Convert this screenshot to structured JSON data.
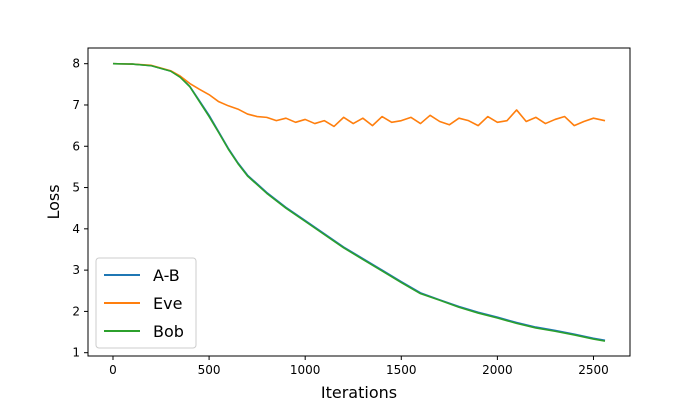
{
  "chart_data": {
    "type": "line",
    "title": "",
    "xlabel": "Iterations",
    "ylabel": "Loss",
    "xlim": [
      -130,
      2690
    ],
    "ylim": [
      0.92,
      8.38
    ],
    "xticks": [
      0,
      500,
      1000,
      1500,
      2000,
      2500
    ],
    "xtick_labels": [
      "0",
      "500",
      "1000",
      "1500",
      "2000",
      "2500"
    ],
    "yticks": [
      1,
      2,
      3,
      4,
      5,
      6,
      7,
      8
    ],
    "ytick_labels": [
      "1",
      "2",
      "3",
      "4",
      "5",
      "6",
      "7",
      "8"
    ],
    "grid": false,
    "legend_position": "lower-left",
    "series": [
      {
        "name": "A-B",
        "color": "#1f77b4",
        "x": [
          0,
          100,
          200,
          300,
          350,
          400,
          450,
          500,
          550,
          600,
          650,
          700,
          800,
          900,
          1000,
          1100,
          1200,
          1300,
          1400,
          1500,
          1600,
          1700,
          1800,
          1900,
          2000,
          2100,
          2200,
          2300,
          2400,
          2500,
          2560
        ],
        "y": [
          8.0,
          7.99,
          7.95,
          7.82,
          7.68,
          7.45,
          7.1,
          6.75,
          6.35,
          5.95,
          5.6,
          5.3,
          4.88,
          4.52,
          4.2,
          3.88,
          3.56,
          3.28,
          3.0,
          2.72,
          2.45,
          2.28,
          2.12,
          1.98,
          1.86,
          1.73,
          1.62,
          1.54,
          1.45,
          1.35,
          1.3
        ]
      },
      {
        "name": "Eve",
        "color": "#ff7f0e",
        "x": [
          0,
          100,
          200,
          300,
          350,
          400,
          450,
          500,
          550,
          600,
          650,
          700,
          750,
          800,
          850,
          900,
          950,
          1000,
          1050,
          1100,
          1150,
          1200,
          1250,
          1300,
          1350,
          1400,
          1450,
          1500,
          1550,
          1600,
          1650,
          1700,
          1750,
          1800,
          1850,
          1900,
          1950,
          2000,
          2050,
          2100,
          2150,
          2200,
          2250,
          2300,
          2350,
          2400,
          2450,
          2500,
          2560
        ],
        "y": [
          8.0,
          7.99,
          7.96,
          7.83,
          7.7,
          7.52,
          7.38,
          7.25,
          7.08,
          6.98,
          6.9,
          6.78,
          6.72,
          6.7,
          6.62,
          6.68,
          6.58,
          6.65,
          6.55,
          6.62,
          6.48,
          6.7,
          6.55,
          6.68,
          6.5,
          6.72,
          6.58,
          6.62,
          6.7,
          6.55,
          6.75,
          6.6,
          6.52,
          6.68,
          6.62,
          6.5,
          6.72,
          6.58,
          6.62,
          6.88,
          6.6,
          6.7,
          6.55,
          6.65,
          6.72,
          6.5,
          6.6,
          6.68,
          6.62
        ]
      },
      {
        "name": "Bob",
        "color": "#2ca02c",
        "x": [
          0,
          100,
          200,
          300,
          350,
          400,
          450,
          500,
          550,
          600,
          650,
          700,
          800,
          900,
          1000,
          1100,
          1200,
          1300,
          1400,
          1500,
          1600,
          1700,
          1800,
          1900,
          2000,
          2100,
          2200,
          2300,
          2400,
          2500,
          2560
        ],
        "y": [
          8.0,
          7.99,
          7.95,
          7.82,
          7.67,
          7.44,
          7.08,
          6.72,
          6.33,
          5.93,
          5.58,
          5.28,
          4.86,
          4.5,
          4.18,
          3.86,
          3.54,
          3.26,
          2.98,
          2.7,
          2.43,
          2.27,
          2.1,
          1.96,
          1.84,
          1.71,
          1.6,
          1.52,
          1.43,
          1.33,
          1.28
        ]
      }
    ]
  }
}
